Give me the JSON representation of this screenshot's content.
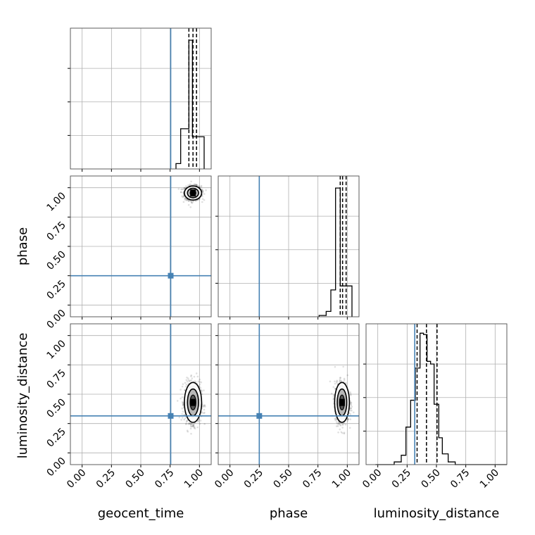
{
  "chart_data": {
    "type": "corner",
    "parameters": [
      "geocent_time",
      "phase",
      "luminosity_distance"
    ],
    "axis_range": [
      -0.1,
      1.1
    ],
    "ticks": [
      0.0,
      0.25,
      0.5,
      0.75,
      1.0
    ],
    "tick_labels": [
      "0.00",
      "0.25",
      "0.50",
      "0.75",
      "1.00"
    ],
    "grid": true,
    "truths": {
      "geocent_time": 0.755,
      "phase": 0.25,
      "luminosity_distance": 0.315
    },
    "truth_color": "#4682b4",
    "sample_color": "#000000",
    "quantiles": {
      "geocent_time": [
        0.91,
        0.945,
        0.975
      ],
      "phase": [
        0.94,
        0.96,
        0.99
      ],
      "luminosity_distance": [
        0.335,
        0.415,
        0.505
      ]
    },
    "histograms": {
      "geocent_time": {
        "edges": [
          0.8,
          0.84,
          0.87,
          0.91,
          0.94,
          0.98,
          1.04
        ],
        "counts": [
          0.04,
          0.3,
          0.3,
          0.96,
          0.24,
          0.24
        ],
        "ylim": [
          0,
          1.05
        ]
      },
      "phase": {
        "edges": [
          0.76,
          0.82,
          0.86,
          0.9,
          0.94,
          0.99,
          1.04
        ],
        "counts": [
          0.01,
          0.04,
          0.2,
          0.96,
          0.23,
          0.23
        ],
        "ylim": [
          0,
          1.05
        ]
      },
      "luminosity_distance": {
        "edges": [
          -0.02,
          0.06,
          0.14,
          0.2,
          0.24,
          0.28,
          0.32,
          0.36,
          0.39,
          0.42,
          0.45,
          0.48,
          0.52,
          0.55,
          0.6,
          0.66,
          0.72,
          0.8,
          0.9,
          1.0,
          1.1
        ],
        "counts": [
          0.0,
          0.0,
          0.02,
          0.07,
          0.28,
          0.48,
          0.72,
          0.98,
          0.97,
          0.77,
          0.75,
          0.45,
          0.2,
          0.08,
          0.02,
          0.0,
          0.0,
          0.0,
          0.0,
          0.0
        ],
        "ylim": [
          0,
          1.05
        ]
      }
    },
    "scatter_panels": [
      {
        "x": "geocent_time",
        "y": "phase",
        "center": [
          0.945,
          0.955
        ],
        "spread": [
          0.035,
          0.03
        ]
      },
      {
        "x": "geocent_time",
        "y": "luminosity_distance",
        "center": [
          0.945,
          0.43
        ],
        "spread": [
          0.035,
          0.085
        ]
      },
      {
        "x": "phase",
        "y": "luminosity_distance",
        "center": [
          0.955,
          0.43
        ],
        "spread": [
          0.03,
          0.085
        ]
      }
    ]
  }
}
